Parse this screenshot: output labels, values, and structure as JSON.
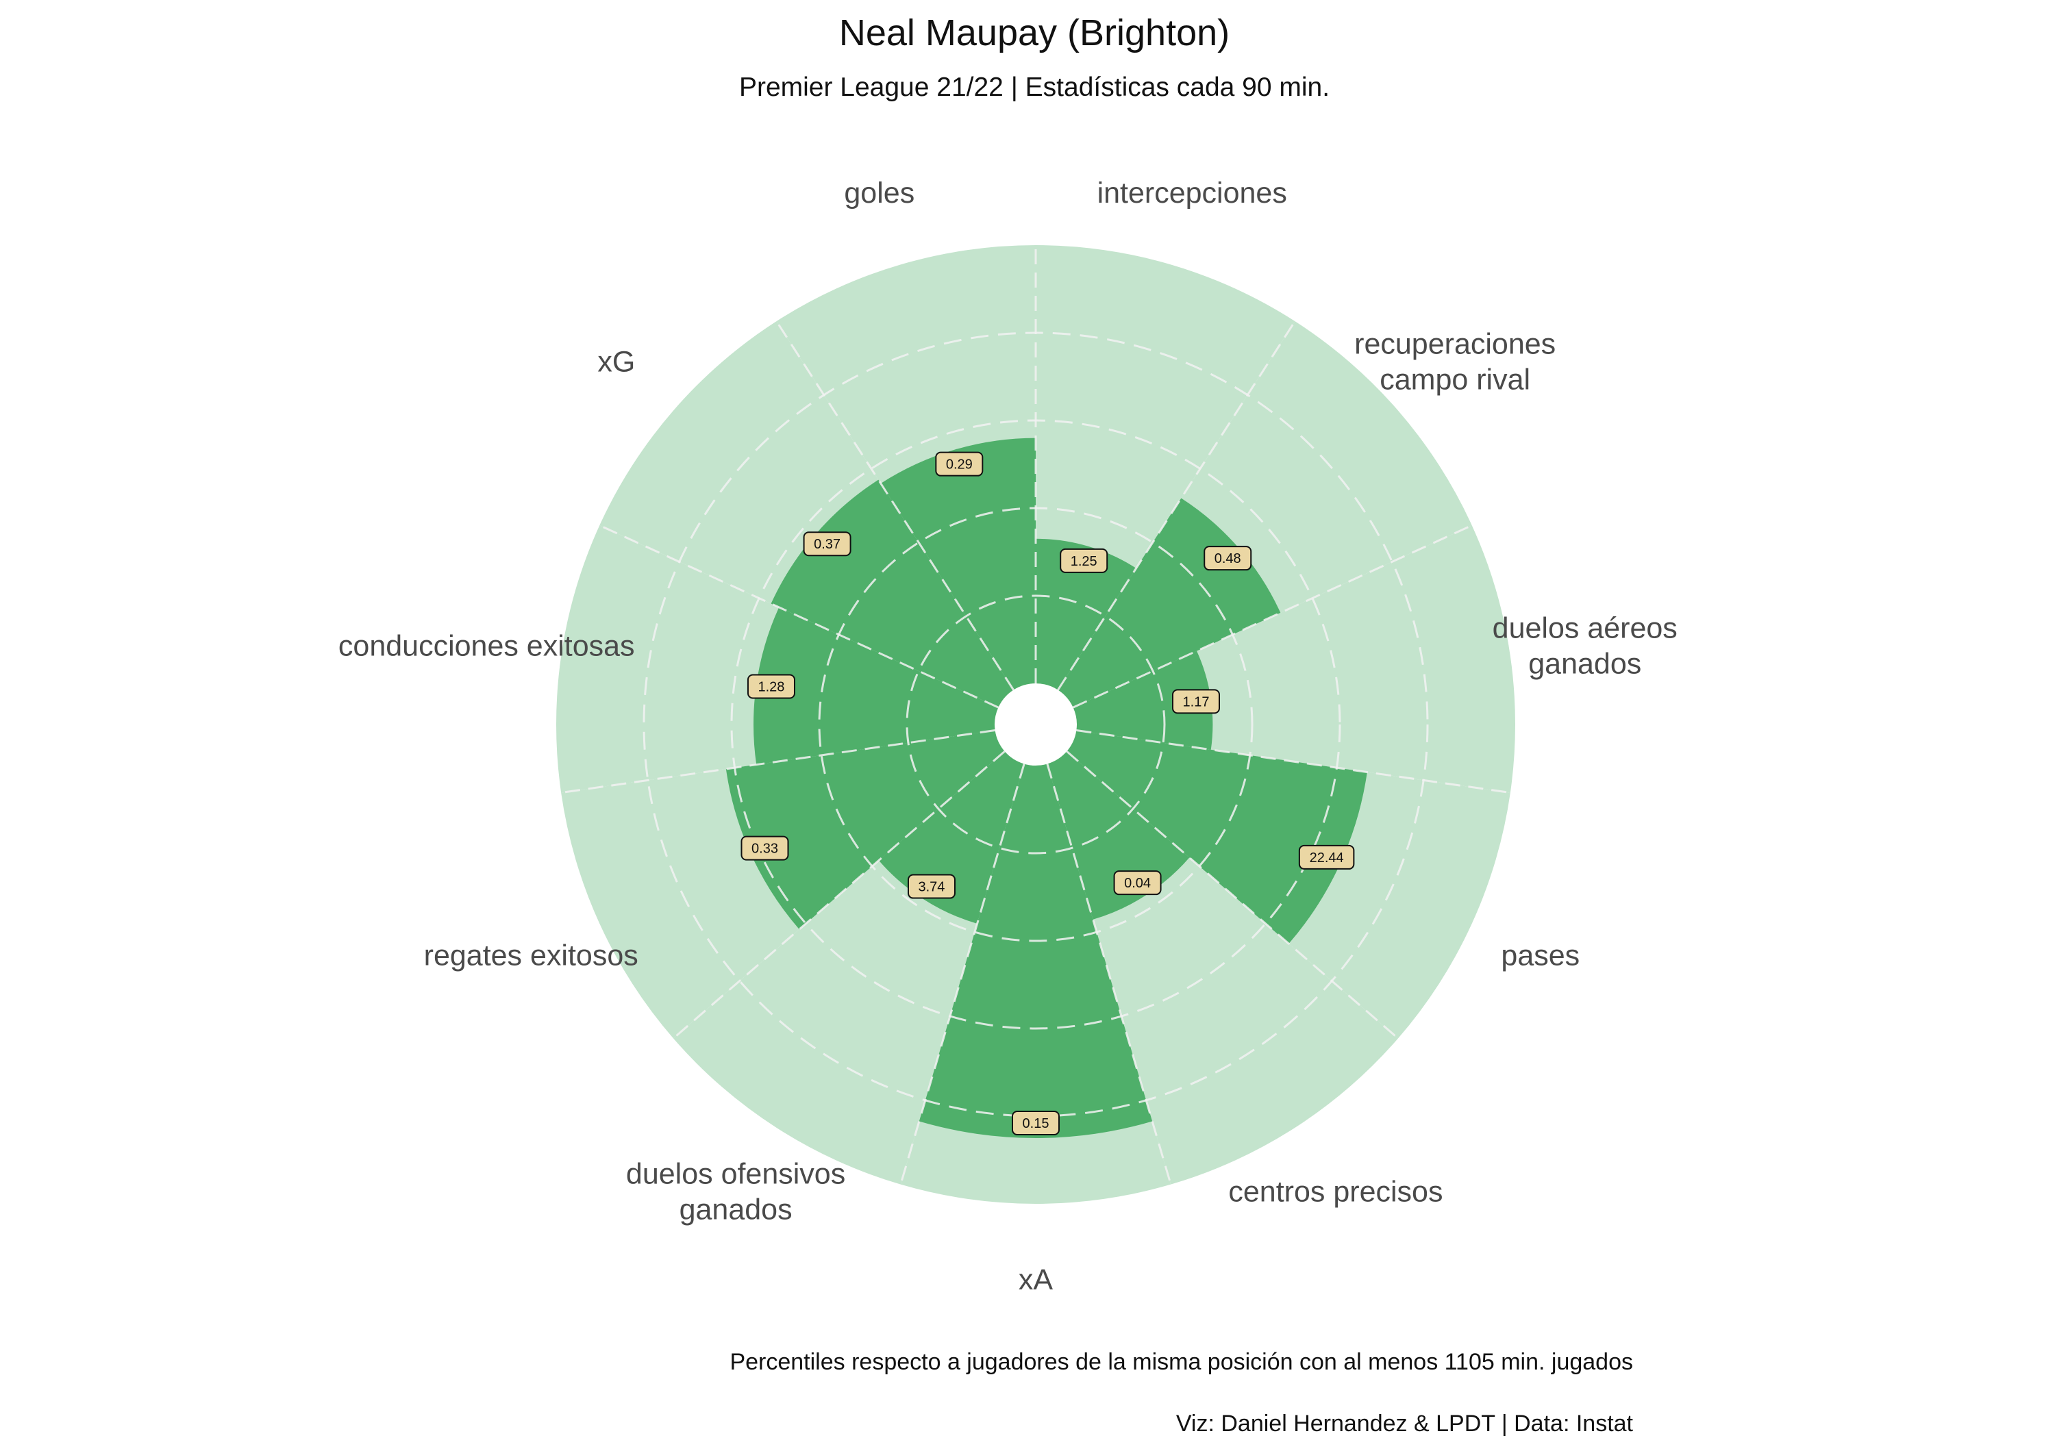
{
  "chart_data": {
    "type": "polar-bar",
    "title": "Neal Maupay (Brighton)",
    "subtitle": "Premier League 21/22 | Estadísticas cada 90 min.",
    "footer_note": "Percentiles respecto a jugadores de la misma posición con al menos 1105 min. jugados",
    "credits": "Viz: Daniel Hernandez & LPDT  |  Data: Instat",
    "rlim": [
      0,
      100
    ],
    "grid": true,
    "categories": [
      {
        "label": [
          "intercepciones"
        ],
        "value": 1.25,
        "percentile": 33
      },
      {
        "label": [
          "recuperaciones",
          "campo rival"
        ],
        "value": 0.48,
        "percentile": 52
      },
      {
        "label": [
          "duelos aéreos",
          "ganados"
        ],
        "value": 1.17,
        "percentile": 31
      },
      {
        "label": [
          "pases"
        ],
        "value": 22.44,
        "percentile": 67
      },
      {
        "label": [
          "centros precisos"
        ],
        "value": 0.04,
        "percentile": 37
      },
      {
        "label": [
          "xA"
        ],
        "value": 0.15,
        "percentile": 85
      },
      {
        "label": [
          "duelos ofensivos",
          "ganados"
        ],
        "value": 3.74,
        "percentile": 38
      },
      {
        "label": [
          "regates exitosos"
        ],
        "value": 0.33,
        "percentile": 62
      },
      {
        "label": [
          "conducciones exitosas"
        ],
        "value": 1.28,
        "percentile": 55
      },
      {
        "label": [
          "xG"
        ],
        "value": 0.37,
        "percentile": 57
      },
      {
        "label": [
          "goles"
        ],
        "value": 0.29,
        "percentile": 56
      }
    ],
    "colors": {
      "background_wedge": "#c4e4cd",
      "bar": "#4faf6a",
      "grid": "#f2f2f2",
      "value_box": "#ebd7a4",
      "value_box_border": "#111111",
      "label": "#4a4a4a"
    }
  }
}
